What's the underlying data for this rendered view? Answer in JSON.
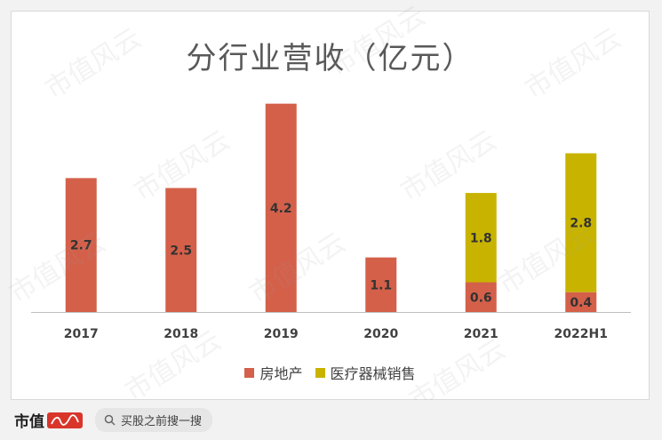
{
  "watermark": {
    "text": "市值风云"
  },
  "footer": {
    "brand": "市值",
    "search_text": "买股之前搜一搜"
  },
  "chart_data": {
    "type": "bar",
    "stacked": true,
    "title": "分行业营收（亿元）",
    "categories": [
      "2017",
      "2018",
      "2019",
      "2020",
      "2021",
      "2022H1"
    ],
    "series": [
      {
        "name": "房地产",
        "color": "#d4604a",
        "values": [
          2.7,
          2.5,
          4.2,
          1.1,
          0.6,
          0.4
        ]
      },
      {
        "name": "医疗器械销售",
        "color": "#c8b400",
        "values": [
          0,
          0,
          0,
          0,
          1.8,
          2.8
        ]
      }
    ],
    "legend": "bottom",
    "grid": false
  }
}
